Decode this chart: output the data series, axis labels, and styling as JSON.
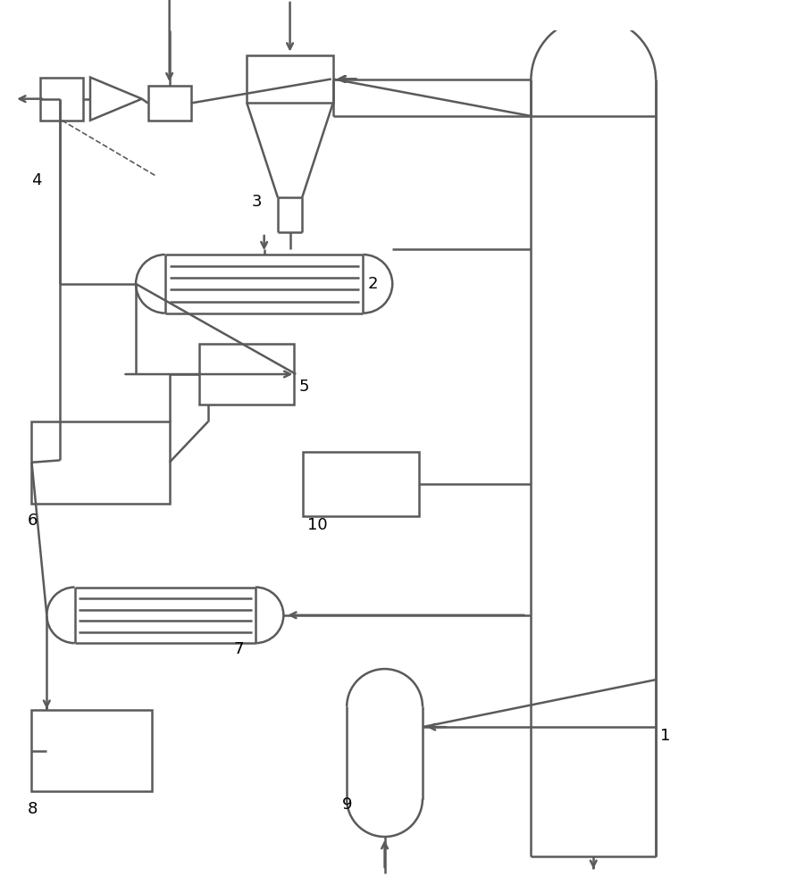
{
  "line_color": "#5a5a5a",
  "line_width": 1.8,
  "bg_color": "#ffffff",
  "fig_width": 8.91,
  "fig_height": 10.0
}
